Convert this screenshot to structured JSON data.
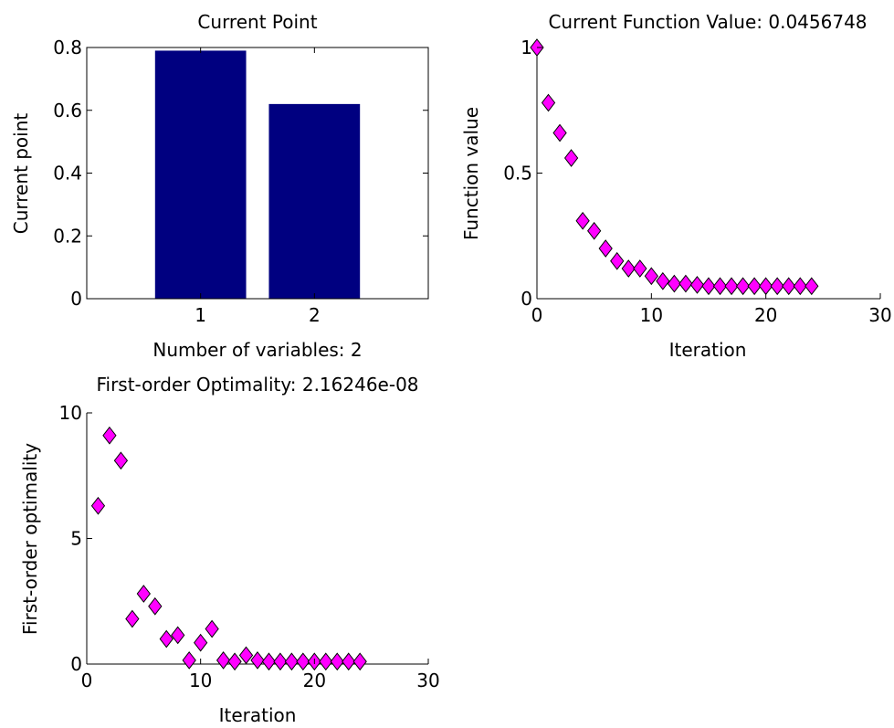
{
  "chart_data": [
    {
      "type": "bar",
      "title": "Current Point",
      "xlabel": "Number of variables: 2",
      "ylabel": "Current point",
      "categories": [
        "1",
        "2"
      ],
      "values": [
        0.79,
        0.62
      ],
      "xlim": [
        0,
        3
      ],
      "ylim": [
        0,
        0.8
      ],
      "xticks": [
        "1",
        "2"
      ],
      "yticks": [
        "0",
        "0.2",
        "0.4",
        "0.6",
        "0.8"
      ],
      "grid": false,
      "colors": {
        "bar": "#000080"
      }
    },
    {
      "type": "scatter",
      "title": "Current Function Value: 0.0456748",
      "xlabel": "Iteration",
      "ylabel": "Function value",
      "x": [
        0,
        1,
        2,
        3,
        4,
        5,
        6,
        7,
        8,
        9,
        10,
        11,
        12,
        13,
        14,
        15,
        16,
        17,
        18,
        19,
        20,
        21,
        22,
        23,
        24
      ],
      "y": [
        1.0,
        0.78,
        0.66,
        0.56,
        0.31,
        0.27,
        0.2,
        0.15,
        0.12,
        0.12,
        0.09,
        0.07,
        0.06,
        0.06,
        0.055,
        0.05,
        0.05,
        0.05,
        0.05,
        0.05,
        0.05,
        0.05,
        0.05,
        0.05,
        0.05
      ],
      "xlim": [
        0,
        30
      ],
      "ylim": [
        0,
        1
      ],
      "xticks": [
        "0",
        "10",
        "20",
        "30"
      ],
      "yticks": [
        "0",
        "0.5",
        "1"
      ],
      "grid": false,
      "colors": {
        "marker": "#ff00ff",
        "marker_edge": "#000000"
      }
    },
    {
      "type": "scatter",
      "title": "First-order Optimality: 2.16246e-08",
      "xlabel": "Iteration",
      "ylabel": "First-order optimality",
      "x": [
        1,
        2,
        3,
        4,
        5,
        6,
        7,
        8,
        9,
        10,
        11,
        12,
        13,
        14,
        15,
        16,
        17,
        18,
        19,
        20,
        21,
        22,
        23,
        24
      ],
      "y": [
        6.3,
        9.1,
        8.1,
        1.8,
        2.8,
        2.3,
        1.0,
        1.15,
        0.15,
        0.85,
        1.4,
        0.15,
        0.1,
        0.35,
        0.15,
        0.1,
        0.1,
        0.1,
        0.1,
        0.1,
        0.1,
        0.1,
        0.1,
        0.1
      ],
      "xlim": [
        0,
        30
      ],
      "ylim": [
        0,
        10
      ],
      "xticks": [
        "0",
        "10",
        "20",
        "30"
      ],
      "yticks": [
        "0",
        "5",
        "10"
      ],
      "grid": false,
      "colors": {
        "marker": "#ff00ff",
        "marker_edge": "#000000"
      }
    }
  ]
}
